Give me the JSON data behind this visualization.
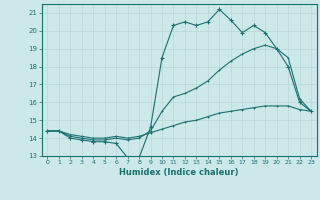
{
  "xlabel": "Humidex (Indice chaleur)",
  "xlim": [
    -0.5,
    23.5
  ],
  "ylim": [
    13,
    21.5
  ],
  "yticks": [
    13,
    14,
    15,
    16,
    17,
    18,
    19,
    20,
    21
  ],
  "xticks": [
    0,
    1,
    2,
    3,
    4,
    5,
    6,
    7,
    8,
    9,
    10,
    11,
    12,
    13,
    14,
    15,
    16,
    17,
    18,
    19,
    20,
    21,
    22,
    23
  ],
  "bg_color": "#cce8e8",
  "line_color": "#1a7070",
  "grid_color": "#b8d8d8",
  "line1_x": [
    0,
    1,
    2,
    3,
    4,
    5,
    6,
    7,
    8,
    9,
    10,
    11,
    12,
    13,
    14,
    15,
    16,
    17,
    18,
    19,
    20,
    21,
    22,
    23
  ],
  "line1_y": [
    14.4,
    14.4,
    14.0,
    13.9,
    13.8,
    13.8,
    13.7,
    12.9,
    12.9,
    14.6,
    18.5,
    20.3,
    20.5,
    20.3,
    20.5,
    21.2,
    20.6,
    19.9,
    20.3,
    19.9,
    19.0,
    18.0,
    16.0,
    15.5
  ],
  "line2_x": [
    0,
    1,
    2,
    3,
    4,
    5,
    6,
    7,
    8,
    9,
    10,
    11,
    12,
    13,
    14,
    15,
    16,
    17,
    18,
    19,
    20,
    21,
    22,
    23
  ],
  "line2_y": [
    14.4,
    14.4,
    14.1,
    14.0,
    13.9,
    13.9,
    14.0,
    13.9,
    14.0,
    14.4,
    15.5,
    16.3,
    16.5,
    16.8,
    17.2,
    17.8,
    18.3,
    18.7,
    19.0,
    19.2,
    19.0,
    18.5,
    16.2,
    15.5
  ],
  "line3_x": [
    0,
    1,
    2,
    3,
    4,
    5,
    6,
    7,
    8,
    9,
    10,
    11,
    12,
    13,
    14,
    15,
    16,
    17,
    18,
    19,
    20,
    21,
    22,
    23
  ],
  "line3_y": [
    14.4,
    14.4,
    14.2,
    14.1,
    14.0,
    14.0,
    14.1,
    14.0,
    14.1,
    14.3,
    14.5,
    14.7,
    14.9,
    15.0,
    15.2,
    15.4,
    15.5,
    15.6,
    15.7,
    15.8,
    15.8,
    15.8,
    15.6,
    15.5
  ]
}
